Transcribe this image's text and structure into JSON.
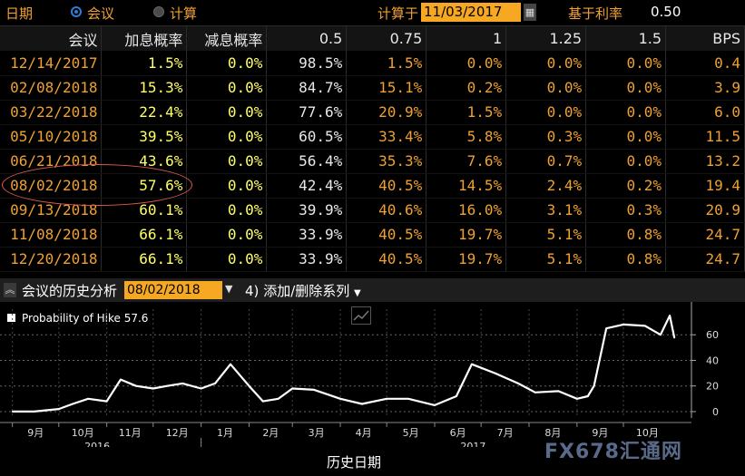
{
  "toolbar": {
    "date_label": "日期",
    "mode_meeting": "会议",
    "mode_calc": "计算",
    "calc_label": "计算于",
    "calc_date": "11/03/2017",
    "base_rate_label": "基于利率",
    "base_rate_value": "0.50"
  },
  "table": {
    "headers": [
      "会议",
      "加息概率",
      "减息概率",
      "0.5",
      "0.75",
      "1",
      "1.25",
      "1.5",
      "BPS"
    ],
    "rows": [
      [
        "12/14/2017",
        "1.5%",
        "0.0%",
        "98.5%",
        "1.5%",
        "0.0%",
        "0.0%",
        "0.0%",
        "0.4"
      ],
      [
        "02/08/2018",
        "15.3%",
        "0.0%",
        "84.7%",
        "15.1%",
        "0.2%",
        "0.0%",
        "0.0%",
        "3.9"
      ],
      [
        "03/22/2018",
        "22.4%",
        "0.0%",
        "77.6%",
        "20.9%",
        "1.5%",
        "0.0%",
        "0.0%",
        "6.0"
      ],
      [
        "05/10/2018",
        "39.5%",
        "0.0%",
        "60.5%",
        "33.4%",
        "5.8%",
        "0.3%",
        "0.0%",
        "11.5"
      ],
      [
        "06/21/2018",
        "43.6%",
        "0.0%",
        "56.4%",
        "35.3%",
        "7.6%",
        "0.7%",
        "0.0%",
        "13.2"
      ],
      [
        "08/02/2018",
        "57.6%",
        "0.0%",
        "42.4%",
        "40.5%",
        "14.5%",
        "2.4%",
        "0.2%",
        "19.4"
      ],
      [
        "09/13/2018",
        "60.1%",
        "0.0%",
        "39.9%",
        "40.6%",
        "16.0%",
        "3.1%",
        "0.3%",
        "20.9"
      ],
      [
        "11/08/2018",
        "66.1%",
        "0.0%",
        "33.9%",
        "40.5%",
        "19.7%",
        "5.1%",
        "0.8%",
        "24.7"
      ],
      [
        "12/20/2018",
        "66.1%",
        "0.0%",
        "33.9%",
        "40.5%",
        "19.7%",
        "5.1%",
        "0.8%",
        "24.7"
      ]
    ]
  },
  "history": {
    "label": "会议的历史分析",
    "date": "08/02/2018",
    "add_series": "添加/删除系列"
  },
  "chart_data": {
    "type": "line",
    "series": [
      {
        "name": "Probability of Hike",
        "last_value": "57.6",
        "color": "#ffffff"
      }
    ],
    "x": [
      "2016-09-01",
      "2016-09-15",
      "2016-10-01",
      "2016-10-10",
      "2016-10-20",
      "2016-11-01",
      "2016-11-10",
      "2016-11-20",
      "2016-12-01",
      "2016-12-10",
      "2016-12-20",
      "2017-01-01",
      "2017-01-10",
      "2017-01-20",
      "2017-02-01",
      "2017-02-10",
      "2017-02-20",
      "2017-03-01",
      "2017-03-15",
      "2017-04-01",
      "2017-04-15",
      "2017-05-01",
      "2017-05-15",
      "2017-06-01",
      "2017-06-15",
      "2017-06-25",
      "2017-07-10",
      "2017-07-25",
      "2017-08-05",
      "2017-08-20",
      "2017-09-01",
      "2017-09-08",
      "2017-09-12",
      "2017-09-20",
      "2017-10-01",
      "2017-10-15",
      "2017-10-25",
      "2017-10-31",
      "2017-11-03"
    ],
    "values": [
      0,
      0,
      2,
      6,
      10,
      8,
      25,
      20,
      18,
      20,
      22,
      18,
      22,
      37,
      20,
      8,
      10,
      18,
      17,
      10,
      6,
      10,
      10,
      5,
      12,
      37,
      30,
      22,
      15,
      16,
      10,
      12,
      20,
      65,
      68,
      67,
      60,
      75,
      57.6
    ],
    "x_ticks": [
      "9月",
      "10月",
      "11月",
      "12月",
      "1月",
      "2月",
      "3月",
      "4月",
      "5月",
      "6月",
      "7月",
      "8月",
      "9月",
      "10月"
    ],
    "year_labels": [
      "2016",
      "2017"
    ],
    "y_ticks": [
      0,
      20,
      40,
      60
    ],
    "ylim": [
      -5,
      80
    ],
    "xlabel": "历史日期",
    "ylabel": "",
    "grid": true
  },
  "watermark": "FX678汇通网",
  "colors": {
    "accent": "#f7a823",
    "date": "#f0a030",
    "highlight": "#ffff66",
    "circle": "#e05a4e"
  }
}
